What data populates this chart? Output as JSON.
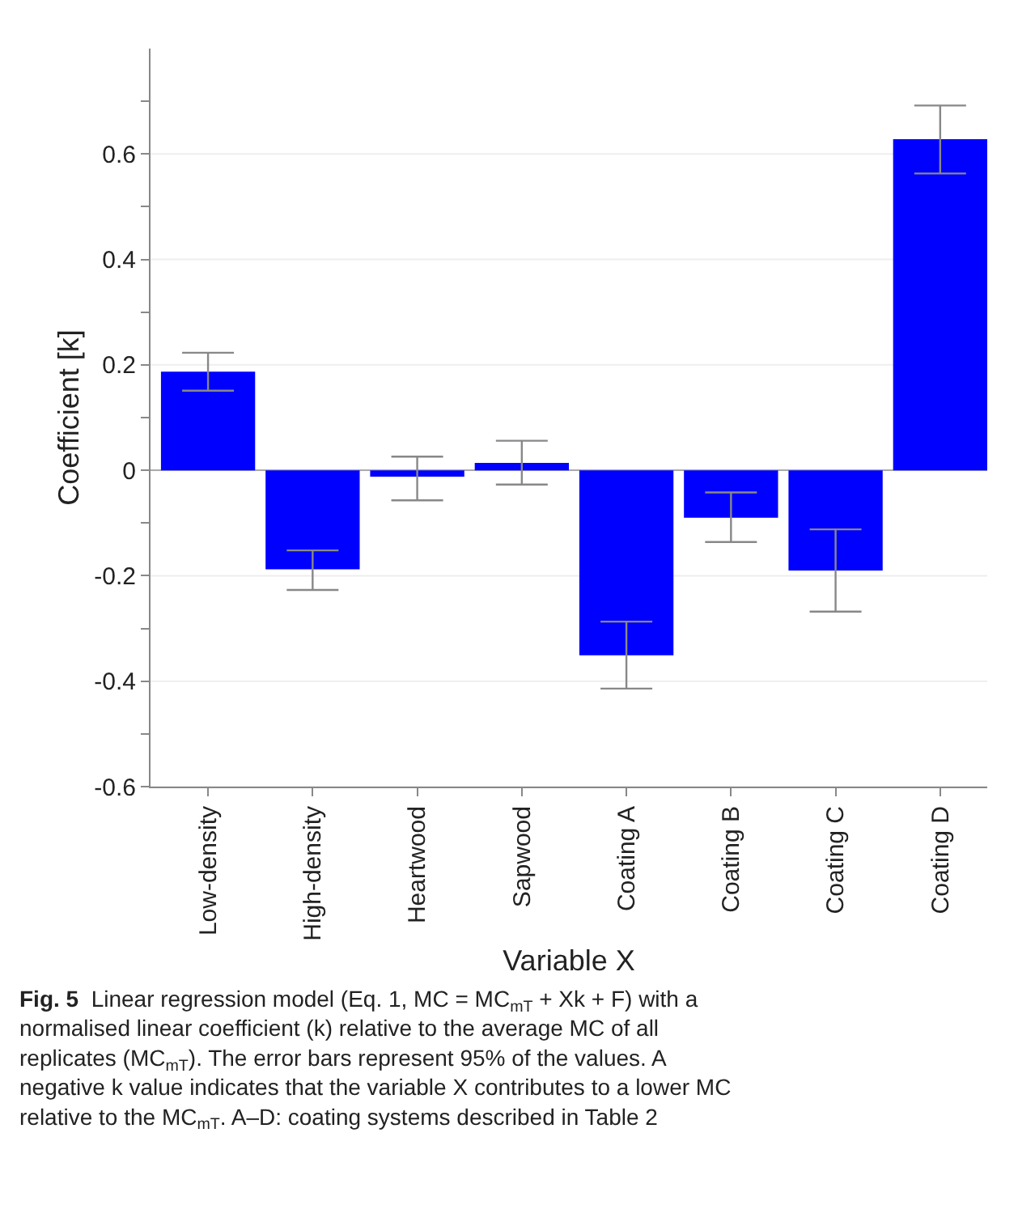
{
  "chart_data": {
    "type": "bar",
    "xlabel": "Variable X",
    "ylabel": "Coefficient [k]",
    "categories": [
      "Low-density",
      "High-density",
      "Heartwood",
      "Sapwood",
      "Coating A",
      "Coating B",
      "Coating C",
      "Coating D"
    ],
    "values": [
      0.187,
      -0.188,
      -0.012,
      0.014,
      -0.351,
      -0.09,
      -0.19,
      0.628
    ],
    "errors": [
      [
        0.151,
        0.223
      ],
      [
        -0.227,
        -0.152
      ],
      [
        -0.057,
        0.026
      ],
      [
        -0.027,
        0.056
      ],
      [
        -0.414,
        -0.287
      ],
      [
        -0.136,
        -0.042
      ],
      [
        -0.268,
        -0.112
      ],
      [
        0.563,
        0.692
      ]
    ],
    "color": "#0000ff",
    "ylim": [
      -0.6,
      0.8
    ],
    "yticks": [
      -0.6,
      {
        "value": -0.5,
        "label": null
      },
      -0.4,
      {
        "value": -0.3,
        "label": null
      },
      -0.2,
      {
        "value": -0.1,
        "label": null
      },
      0,
      {
        "value": 0.1,
        "label": null
      },
      0.2,
      {
        "value": 0.3,
        "label": null
      },
      0.4,
      {
        "value": 0.5,
        "label": null
      },
      0.6,
      {
        "value": 0.7,
        "label": null
      }
    ],
    "grid": "y",
    "annotations": [
      "Fig. 5",
      "Linear regression model (Eq. 1, MC = MC$_{mT}$ + Xk + F) with a normalised linear coefficient (k) relative to the average MC of all replicates (MC$_{mT}$). The error bars represent 95% of the values. A negative k value indicates that the variable X contributes to a lower MC relative to the MC$_{mT}$. A–D: coating systems described in Table 2"
    ]
  }
}
